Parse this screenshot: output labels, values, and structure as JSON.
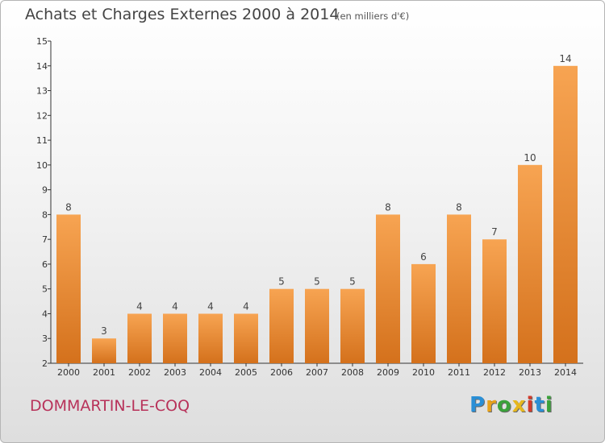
{
  "header": {
    "title": "Achats et Charges Externes 2000 à 2014",
    "unit": "(en milliers d'€)"
  },
  "footer": {
    "commune": "DOMMARTIN-LE-COQ",
    "logo": {
      "letters": [
        "P",
        "r",
        "o",
        "x",
        "i",
        "t",
        "i"
      ],
      "colors": [
        "#2a8fd6",
        "#e8a21a",
        "#3aa23a",
        "#e6b71e",
        "#d33b2b",
        "#2a8fd6",
        "#3aa23a"
      ]
    }
  },
  "chart_data": {
    "type": "bar",
    "title": "Achats et Charges Externes 2000 à 2014",
    "subtitle": "(en milliers d'€)",
    "categories": [
      "2000",
      "2001",
      "2002",
      "2003",
      "2004",
      "2005",
      "2006",
      "2007",
      "2008",
      "2009",
      "2010",
      "2011",
      "2012",
      "2013",
      "2014"
    ],
    "values": [
      8,
      3,
      4,
      4,
      4,
      4,
      5,
      5,
      5,
      8,
      6,
      8,
      7,
      10,
      14
    ],
    "ylim": [
      2,
      15
    ],
    "yticks": [
      2,
      3,
      4,
      5,
      6,
      7,
      8,
      9,
      10,
      11,
      12,
      13,
      14,
      15
    ],
    "xlabel": "",
    "ylabel": "",
    "grid": false,
    "legend": "none",
    "colors": {
      "bar_top": "#f7a452",
      "bar_bottom": "#d4711c",
      "axis": "#333333"
    }
  }
}
